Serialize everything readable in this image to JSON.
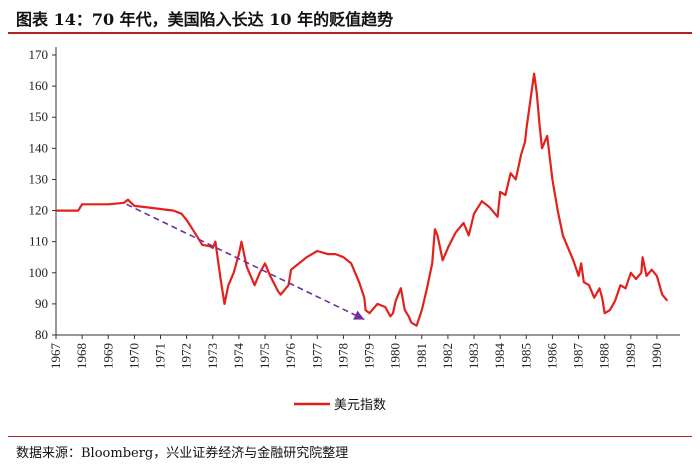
{
  "title": "图表 14：70 年代，美国陷入长达 10 年的贬值趋势",
  "source": "数据来源：Bloomberg，兴业证券经济与金融研究院整理",
  "chart_data": {
    "type": "line",
    "title": "图表 14：70 年代，美国陷入长达 10 年的贬值趋势",
    "xlabel": "",
    "ylabel": "",
    "xlim": [
      1967,
      1990.5
    ],
    "ylim": [
      80,
      170
    ],
    "yticks": [
      80,
      90,
      100,
      110,
      120,
      130,
      140,
      150,
      160,
      170
    ],
    "xtick_labels": [
      "1967",
      "1968",
      "1969",
      "1970",
      "1971",
      "1972",
      "1973",
      "1974",
      "1975",
      "1976",
      "1977",
      "1978",
      "1979",
      "1980",
      "1981",
      "1982",
      "1983",
      "1984",
      "1985",
      "1986",
      "1987",
      "1988",
      "1989",
      "1990"
    ],
    "legend": "bottom-center",
    "series": [
      {
        "name": "美元指数",
        "color": "#e3211c",
        "x": [
          1967.0,
          1967.5,
          1967.85,
          1968.0,
          1968.5,
          1969.0,
          1969.6,
          1969.75,
          1970.0,
          1970.5,
          1971.0,
          1971.5,
          1971.8,
          1972.0,
          1972.3,
          1972.6,
          1972.9,
          1973.0,
          1973.1,
          1973.3,
          1973.45,
          1973.6,
          1973.8,
          1974.0,
          1974.1,
          1974.3,
          1974.6,
          1974.8,
          1975.0,
          1975.2,
          1975.5,
          1975.6,
          1975.9,
          1976.0,
          1976.3,
          1976.6,
          1977.0,
          1977.4,
          1977.7,
          1978.0,
          1978.3,
          1978.6,
          1978.8,
          1978.85,
          1979.0,
          1979.3,
          1979.6,
          1979.8,
          1979.9,
          1980.0,
          1980.2,
          1980.35,
          1980.5,
          1980.6,
          1980.8,
          1981.0,
          1981.2,
          1981.4,
          1981.5,
          1981.6,
          1981.8,
          1982.0,
          1982.3,
          1982.6,
          1982.8,
          1983.0,
          1983.3,
          1983.6,
          1983.9,
          1984.0,
          1984.2,
          1984.4,
          1984.6,
          1984.8,
          1984.95,
          1985.0,
          1985.1,
          1985.2,
          1985.3,
          1985.4,
          1985.5,
          1985.6,
          1985.8,
          1986.0,
          1986.2,
          1986.4,
          1986.6,
          1986.8,
          1987.0,
          1987.1,
          1987.2,
          1987.4,
          1987.6,
          1987.8,
          1987.9,
          1988.0,
          1988.2,
          1988.4,
          1988.6,
          1988.8,
          1989.0,
          1989.2,
          1989.4,
          1989.45,
          1989.6,
          1989.8,
          1990.0,
          1990.2,
          1990.4
        ],
        "values": [
          120,
          120,
          120,
          122,
          122,
          122,
          122.5,
          123.5,
          121.5,
          121,
          120.5,
          120,
          119,
          117,
          113,
          109,
          108.5,
          108,
          110,
          98,
          90,
          96,
          100,
          106,
          110,
          102,
          96,
          100,
          103,
          99,
          94,
          93,
          96,
          101,
          103,
          105,
          107,
          106,
          106,
          105,
          103,
          97,
          92,
          88,
          87,
          90,
          89,
          86,
          87,
          91,
          95,
          88,
          86,
          84,
          83,
          88,
          95,
          103,
          114,
          112,
          104,
          108,
          113,
          116,
          112,
          119,
          123,
          121,
          118,
          126,
          125,
          132,
          130,
          138,
          142,
          146,
          152,
          158,
          164,
          158,
          148,
          140,
          144,
          130,
          120,
          112,
          108,
          104,
          99,
          103,
          97,
          96,
          92,
          95,
          92,
          87,
          88,
          91,
          96,
          95,
          100,
          98,
          100,
          105,
          99,
          101,
          99,
          93,
          91
        ]
      }
    ],
    "annotations": [
      {
        "type": "dashed-arrow",
        "color": "#7030a0",
        "from": [
          1969.7,
          122
        ],
        "to": [
          1978.8,
          85
        ]
      }
    ]
  }
}
